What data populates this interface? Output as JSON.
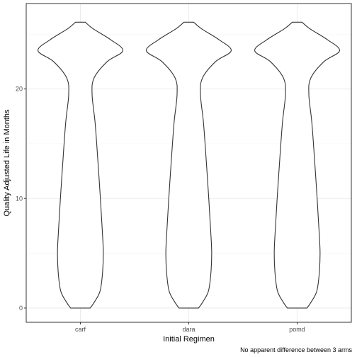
{
  "chart_data": {
    "type": "violin",
    "title": "",
    "xlabel": "Initial Regimen",
    "ylabel": "Quality Adjusted Life in Months",
    "caption": "No apparent difference between 3 arms",
    "categories": [
      "carf",
      "dara",
      "pomd"
    ],
    "ylim": [
      -1.3,
      27.8
    ],
    "yticks": [
      0,
      10,
      20
    ],
    "grid": true,
    "legend": "none",
    "series": [
      {
        "profile": [
          {
            "y": 0.0,
            "w": 0.2
          },
          {
            "y": 0.5,
            "w": 0.28
          },
          {
            "y": 1.5,
            "w": 0.4
          },
          {
            "y": 3.0,
            "w": 0.45
          },
          {
            "y": 5.0,
            "w": 0.47
          },
          {
            "y": 7.0,
            "w": 0.45
          },
          {
            "y": 10.0,
            "w": 0.41
          },
          {
            "y": 14.0,
            "w": 0.35
          },
          {
            "y": 17.0,
            "w": 0.3
          },
          {
            "y": 19.5,
            "w": 0.24
          },
          {
            "y": 21.0,
            "w": 0.28
          },
          {
            "y": 22.5,
            "w": 0.55
          },
          {
            "y": 23.5,
            "w": 0.87
          },
          {
            "y": 24.5,
            "w": 0.62
          },
          {
            "y": 25.5,
            "w": 0.26
          },
          {
            "y": 26.1,
            "w": 0.1
          }
        ]
      },
      {
        "profile": [
          {
            "y": 0.0,
            "w": 0.2
          },
          {
            "y": 0.5,
            "w": 0.28
          },
          {
            "y": 1.5,
            "w": 0.4
          },
          {
            "y": 3.0,
            "w": 0.45
          },
          {
            "y": 5.0,
            "w": 0.47
          },
          {
            "y": 7.0,
            "w": 0.45
          },
          {
            "y": 10.0,
            "w": 0.41
          },
          {
            "y": 14.0,
            "w": 0.35
          },
          {
            "y": 17.0,
            "w": 0.3
          },
          {
            "y": 19.5,
            "w": 0.24
          },
          {
            "y": 21.0,
            "w": 0.28
          },
          {
            "y": 22.5,
            "w": 0.55
          },
          {
            "y": 23.5,
            "w": 0.87
          },
          {
            "y": 24.5,
            "w": 0.62
          },
          {
            "y": 25.5,
            "w": 0.26
          },
          {
            "y": 26.1,
            "w": 0.1
          }
        ]
      },
      {
        "profile": [
          {
            "y": 0.0,
            "w": 0.2
          },
          {
            "y": 0.5,
            "w": 0.28
          },
          {
            "y": 1.5,
            "w": 0.4
          },
          {
            "y": 3.0,
            "w": 0.45
          },
          {
            "y": 5.0,
            "w": 0.47
          },
          {
            "y": 7.0,
            "w": 0.45
          },
          {
            "y": 10.0,
            "w": 0.41
          },
          {
            "y": 14.0,
            "w": 0.35
          },
          {
            "y": 17.0,
            "w": 0.3
          },
          {
            "y": 19.5,
            "w": 0.24
          },
          {
            "y": 21.0,
            "w": 0.28
          },
          {
            "y": 22.5,
            "w": 0.55
          },
          {
            "y": 23.5,
            "w": 0.87
          },
          {
            "y": 24.5,
            "w": 0.62
          },
          {
            "y": 25.5,
            "w": 0.26
          },
          {
            "y": 26.1,
            "w": 0.1
          }
        ]
      }
    ]
  },
  "colors": {
    "background": "#ffffff",
    "panel_border": "#333333",
    "grid_major": "#ebebeb",
    "grid_minor": "#f5f5f5",
    "violin_stroke": "#333333",
    "violin_fill": "#ffffff",
    "tick_text": "#4d4d4d",
    "text": "#000000"
  }
}
